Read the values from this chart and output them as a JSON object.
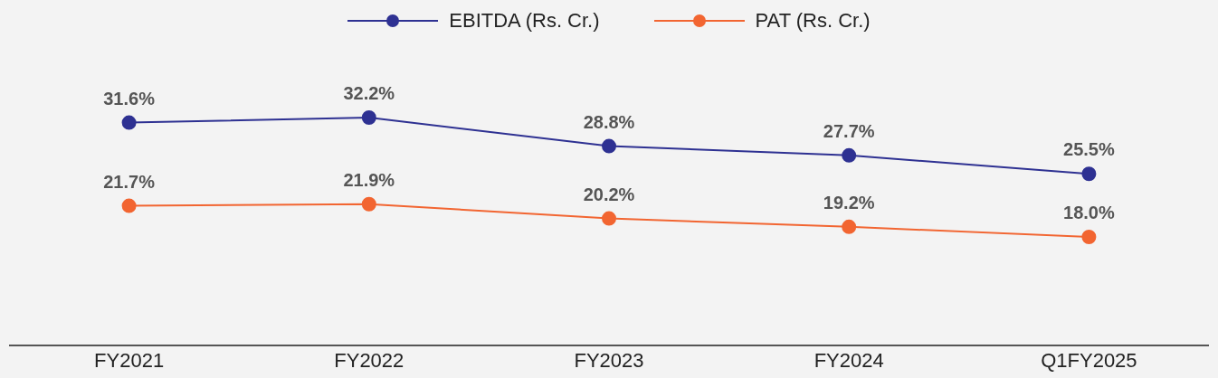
{
  "chart_data": {
    "type": "line",
    "categories": [
      "FY2021",
      "FY2022",
      "FY2023",
      "FY2024",
      "Q1FY2025"
    ],
    "series": [
      {
        "name": "EBITDA (Rs. Cr.)",
        "color": "#2e3192",
        "values": [
          31.6,
          32.2,
          28.8,
          27.7,
          25.5
        ],
        "value_labels": [
          "31.6%",
          "32.2%",
          "28.8%",
          "27.7%",
          "25.5%"
        ]
      },
      {
        "name": "PAT (Rs. Cr.)",
        "color": "#f26531",
        "values": [
          21.7,
          21.9,
          20.2,
          19.2,
          18.0
        ],
        "value_labels": [
          "21.7%",
          "21.9%",
          "20.2%",
          "19.2%",
          "18.0%"
        ]
      }
    ],
    "tick_labels": "x",
    "grid": false,
    "legend": "top",
    "marker": "circle",
    "line_style": "solid"
  }
}
